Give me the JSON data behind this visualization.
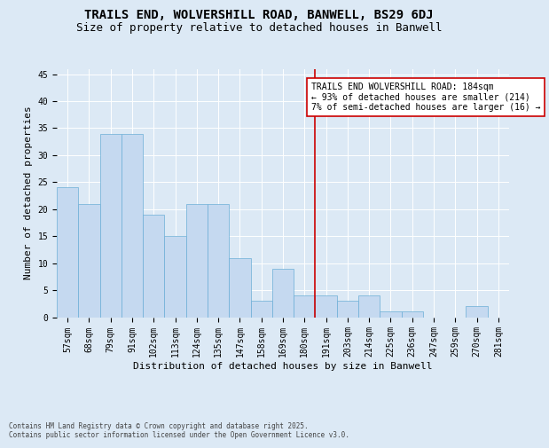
{
  "title": "TRAILS END, WOLVERSHILL ROAD, BANWELL, BS29 6DJ",
  "subtitle": "Size of property relative to detached houses in Banwell",
  "xlabel": "Distribution of detached houses by size in Banwell",
  "ylabel": "Number of detached properties",
  "footnote": "Contains HM Land Registry data © Crown copyright and database right 2025.\nContains public sector information licensed under the Open Government Licence v3.0.",
  "categories": [
    "57sqm",
    "68sqm",
    "79sqm",
    "91sqm",
    "102sqm",
    "113sqm",
    "124sqm",
    "135sqm",
    "147sqm",
    "158sqm",
    "169sqm",
    "180sqm",
    "191sqm",
    "203sqm",
    "214sqm",
    "225sqm",
    "236sqm",
    "247sqm",
    "259sqm",
    "270sqm",
    "281sqm"
  ],
  "values": [
    24,
    21,
    34,
    34,
    19,
    15,
    21,
    21,
    11,
    3,
    9,
    4,
    4,
    3,
    4,
    1,
    1,
    0,
    0,
    2,
    0
  ],
  "bar_color": "#c5d9f0",
  "bar_edge_color": "#6baed6",
  "vline_x": 11.5,
  "vline_color": "#cc0000",
  "annotation_text": "TRAILS END WOLVERSHILL ROAD: 184sqm\n← 93% of detached houses are smaller (214)\n7% of semi-detached houses are larger (16) →",
  "annotation_box_color": "#ffffff",
  "annotation_box_edge": "#cc0000",
  "ylim": [
    0,
    46
  ],
  "yticks": [
    0,
    5,
    10,
    15,
    20,
    25,
    30,
    35,
    40,
    45
  ],
  "bg_color": "#dce9f5",
  "plot_bg_color": "#dce9f5",
  "title_fontsize": 10,
  "subtitle_fontsize": 9,
  "axis_fontsize": 8,
  "tick_fontsize": 7,
  "annotation_fontsize": 7,
  "footnote_fontsize": 5.5
}
